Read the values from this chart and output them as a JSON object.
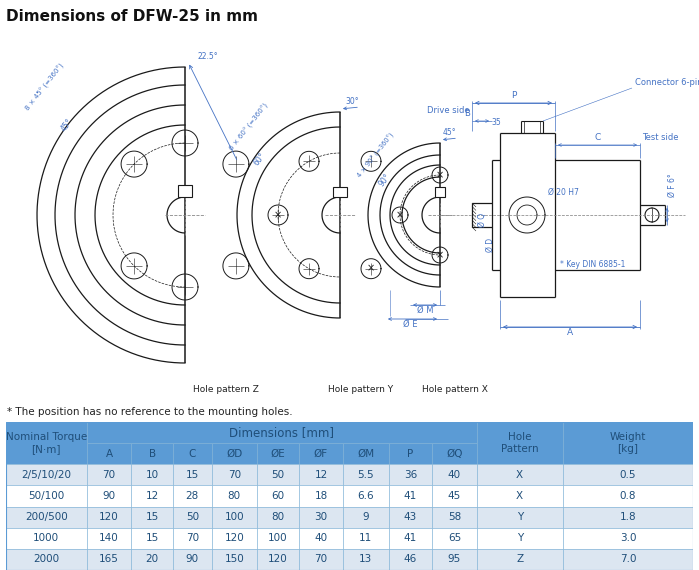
{
  "title": "Dimensions of DFW-25 in mm",
  "title_bg": "#ccdde8",
  "drawing_bg": "#ffffff",
  "footnote": "* The position has no reference to the mounting holes.",
  "table_rows": [
    [
      "2/5/10/20",
      "70",
      "10",
      "15",
      "70",
      "50",
      "12",
      "5.5",
      "36",
      "40",
      "X",
      "0.5"
    ],
    [
      "50/100",
      "90",
      "12",
      "28",
      "80",
      "60",
      "18",
      "6.6",
      "41",
      "45",
      "X",
      "0.8"
    ],
    [
      "200/500",
      "120",
      "15",
      "50",
      "100",
      "80",
      "30",
      "9",
      "43",
      "58",
      "Y",
      "1.8"
    ],
    [
      "1000",
      "140",
      "15",
      "70",
      "120",
      "100",
      "40",
      "11",
      "41",
      "65",
      "Y",
      "3.0"
    ],
    [
      "2000",
      "165",
      "20",
      "90",
      "150",
      "120",
      "70",
      "13",
      "46",
      "95",
      "Z",
      "7.0"
    ]
  ],
  "table_header_bg": "#5b9bd5",
  "table_row_bg_even": "#dce6f1",
  "table_row_bg_odd": "#ffffff",
  "table_text_color": "#1f4e79",
  "lc": "#1a1a1a",
  "dc": "#4472c4",
  "clc": "#888888"
}
